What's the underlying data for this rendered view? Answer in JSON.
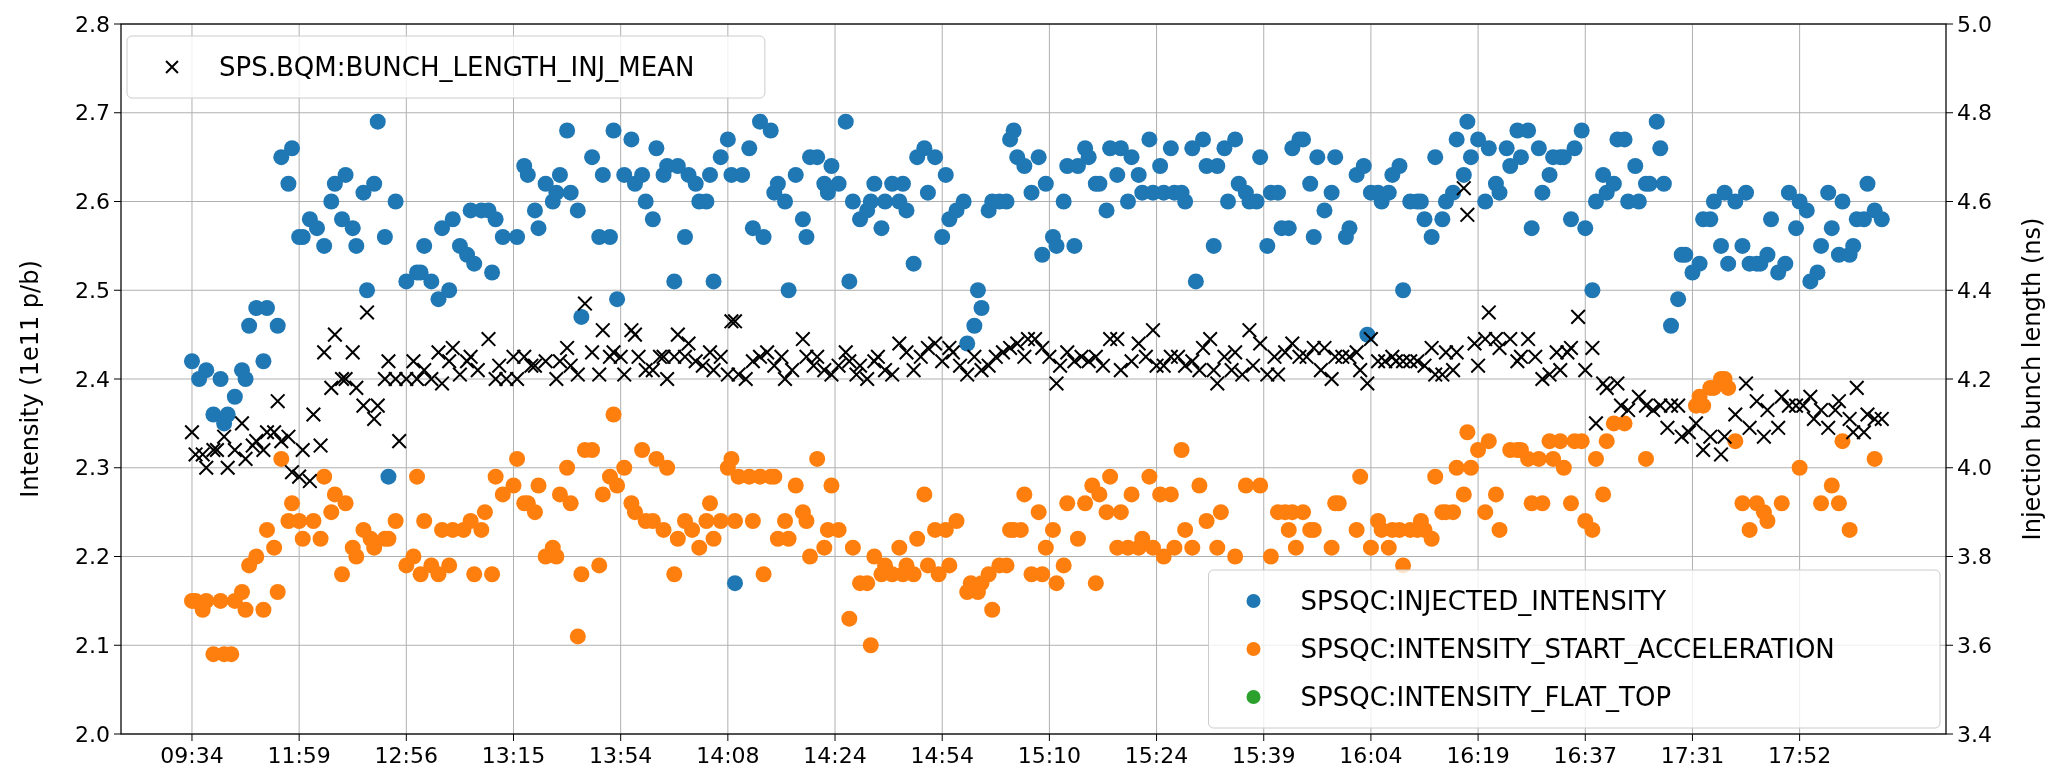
{
  "chart_data": {
    "type": "scatter",
    "ylabel": "Intensity (1e11 p/b)",
    "y2label": "Injection bunch length (ns)",
    "categories": [
      "09:34",
      null,
      null,
      null,
      null,
      null,
      null,
      null,
      null,
      null,
      null,
      null,
      null,
      null,
      null,
      null,
      null,
      null,
      null,
      null,
      null,
      null,
      null,
      null,
      null,
      null,
      null,
      null,
      null,
      null,
      "11:59",
      null,
      null,
      null,
      null,
      null,
      null,
      null,
      null,
      null,
      null,
      null,
      null,
      null,
      null,
      null,
      null,
      null,
      null,
      null,
      null,
      null,
      null,
      null,
      null,
      null,
      null,
      null,
      null,
      null,
      "12:56",
      null,
      null,
      null,
      null,
      null,
      null,
      null,
      null,
      null,
      null,
      null,
      null,
      null,
      null,
      null,
      null,
      null,
      null,
      null,
      null,
      null,
      null,
      null,
      null,
      null,
      null,
      null,
      null,
      null,
      "13:15",
      null,
      null,
      null,
      null,
      null,
      null,
      null,
      null,
      null,
      null,
      null,
      null,
      null,
      null,
      null,
      null,
      null,
      null,
      null,
      null,
      null,
      null,
      null,
      null,
      null,
      null,
      null,
      null,
      null,
      "13:54",
      null,
      null,
      null,
      null,
      null,
      null,
      null,
      null,
      null,
      null,
      null,
      null,
      null,
      null,
      null,
      null,
      null,
      null,
      null,
      null,
      null,
      null,
      null,
      null,
      null,
      null,
      null,
      null,
      null,
      "14:08",
      null,
      null,
      null,
      null,
      null,
      null,
      null,
      null,
      null,
      null,
      null,
      null,
      null,
      null,
      null,
      null,
      null,
      null,
      null,
      null,
      null,
      null,
      null,
      null,
      null,
      null,
      null,
      null,
      null,
      "14:24",
      null,
      null,
      null,
      null,
      null,
      null,
      null,
      null,
      null,
      null,
      null,
      null,
      null,
      null,
      null,
      null,
      null,
      null,
      null,
      null,
      null,
      null,
      null,
      null,
      null,
      null,
      null,
      null,
      null,
      "14:54",
      null,
      null,
      null,
      null,
      null,
      null,
      null,
      null,
      null,
      null,
      null,
      null,
      null,
      null,
      null,
      null,
      null,
      null,
      null,
      null,
      null,
      null,
      null,
      null,
      null,
      null,
      null,
      null,
      null,
      "15:10",
      null,
      null,
      null,
      null,
      null,
      null,
      null,
      null,
      null,
      null,
      null,
      null,
      null,
      null,
      null,
      null,
      null,
      null,
      null,
      null,
      null,
      null,
      null,
      null,
      null,
      null,
      null,
      null,
      null,
      "15:24",
      null,
      null,
      null,
      null,
      null,
      null,
      null,
      null,
      null,
      null,
      null,
      null,
      null,
      null,
      null,
      null,
      null,
      null,
      null,
      null,
      null,
      null,
      null,
      null,
      null,
      null,
      null,
      null,
      null,
      "15:39",
      null,
      null,
      null,
      null,
      null,
      null,
      null,
      null,
      null,
      null,
      null,
      null,
      null,
      null,
      null,
      null,
      null,
      null,
      null,
      null,
      null,
      null,
      null,
      null,
      null,
      null,
      null,
      null,
      null,
      "16:04",
      null,
      null,
      null,
      null,
      null,
      null,
      null,
      null,
      null,
      null,
      null,
      null,
      null,
      null,
      null,
      null,
      null,
      null,
      null,
      null,
      null,
      null,
      null,
      null,
      null,
      null,
      null,
      null,
      null,
      "16:19",
      null,
      null,
      null,
      null,
      null,
      null,
      null,
      null,
      null,
      null,
      null,
      null,
      null,
      null,
      null,
      null,
      null,
      null,
      null,
      null,
      null,
      null,
      null,
      null,
      null,
      null,
      null,
      null,
      null,
      "16:37",
      null,
      null,
      null,
      null,
      null,
      null,
      null,
      null,
      null,
      null,
      null,
      null,
      null,
      null,
      null,
      null,
      null,
      null,
      null,
      null,
      null,
      null,
      null,
      null,
      null,
      null,
      null,
      null,
      null,
      "17:31",
      null,
      null,
      null,
      null,
      null,
      null,
      null,
      null,
      null,
      null,
      null,
      null,
      null,
      null,
      null,
      null,
      null,
      null,
      null,
      null,
      null,
      null,
      null,
      null,
      null,
      null,
      null,
      null,
      null,
      "17:52",
      null,
      null,
      null,
      null,
      null,
      null,
      null,
      null,
      null,
      null,
      null,
      null,
      null,
      null,
      null,
      null,
      null,
      null,
      null,
      null,
      null,
      null,
      null
    ],
    "ylim": [
      2.0,
      2.8
    ],
    "yticks": [
      {
        "value": 2.0,
        "label": "2.0"
      },
      2.1,
      2.2,
      2.3,
      2.4,
      2.5,
      2.6,
      2.7,
      2.8
    ],
    "y2lim": [
      3.4,
      5.0
    ],
    "y2ticks": [
      3.4,
      3.6,
      3.8,
      {
        "value": 4.0,
        "label": "4.0"
      },
      4.2,
      4.4,
      4.6,
      4.8,
      {
        "value": 5.0,
        "label": "5.0"
      }
    ],
    "grid": true,
    "legend": "bottom right",
    "series": [
      {
        "name": "SPSQC:INJECTED_INTENSITY",
        "color": "#1f77b4",
        "marker": "circle",
        "values": [
          2.42,
          null,
          2.4,
          null,
          2.41,
          null,
          2.36,
          null,
          2.4,
          2.35,
          2.36,
          null,
          2.38,
          null,
          2.41,
          2.4,
          2.46,
          null,
          2.48,
          null,
          2.42,
          2.48,
          null,
          null,
          2.46,
          2.65,
          null,
          2.62,
          2.66,
          null,
          2.56,
          2.56,
          null,
          2.58,
          null,
          2.57,
          null,
          2.55,
          null,
          2.6,
          2.62,
          null,
          2.58,
          2.63,
          null,
          2.57,
          2.55,
          null,
          2.61,
          2.5,
          null,
          2.62,
          2.69,
          null,
          2.56,
          2.29,
          null,
          2.6,
          null,
          null,
          2.51,
          null,
          null,
          2.52,
          2.52,
          2.55,
          null,
          2.51,
          null,
          2.49,
          2.57,
          null,
          2.5,
          2.58,
          null,
          2.55,
          null,
          2.54,
          2.59,
          2.53,
          null,
          2.59,
          null,
          2.59,
          2.52,
          2.58,
          null,
          2.56,
          null,
          null,
          null,
          2.56,
          null,
          2.64,
          2.63,
          null,
          2.59,
          2.57,
          null,
          2.62,
          null,
          2.6,
          2.61,
          2.63,
          null,
          2.68,
          2.61,
          null,
          2.59,
          2.47,
          null,
          null,
          2.65,
          null,
          2.56,
          2.63,
          null,
          2.56,
          2.68,
          2.49,
          null,
          2.63,
          null,
          2.67,
          2.62,
          null,
          2.63,
          2.6,
          null,
          2.58,
          2.66,
          null,
          2.63,
          2.64,
          null,
          2.51,
          2.64,
          null,
          2.56,
          2.63,
          null,
          2.62,
          2.6,
          null,
          2.6,
          2.63,
          2.51,
          null,
          2.65,
          null,
          2.67,
          2.63,
          2.17,
          null,
          2.63,
          null,
          2.66,
          2.57,
          null,
          2.69,
          2.56,
          null,
          2.68,
          2.61,
          2.62,
          null,
          2.6,
          2.5,
          null,
          2.63,
          null,
          2.58,
          2.56,
          2.65,
          null,
          2.65,
          null,
          2.62,
          2.61,
          2.64,
          null,
          2.62,
          null,
          2.69,
          2.51,
          2.6,
          null,
          2.58,
          null,
          2.59,
          2.6,
          2.62,
          null,
          2.57,
          2.6,
          null,
          2.62,
          null,
          2.6,
          2.62,
          2.59,
          null,
          2.53,
          2.65,
          null,
          2.66,
          2.61,
          null,
          2.65,
          null,
          2.56,
          2.63,
          2.58,
          null,
          2.59,
          null,
          2.6,
          2.44,
          null,
          2.46,
          2.5,
          2.48,
          null,
          2.59,
          2.6,
          null,
          2.6,
          null,
          2.6,
          2.67,
          2.68,
          2.65,
          null,
          2.64,
          null,
          2.61,
          null,
          2.65,
          2.54,
          2.62,
          null,
          2.56,
          2.55,
          null,
          2.6,
          2.64,
          null,
          2.55,
          2.64,
          null,
          2.66,
          2.65,
          null,
          2.62,
          2.62,
          null,
          2.59,
          2.66,
          null,
          2.63,
          2.66,
          null,
          2.6,
          2.65,
          null,
          2.63,
          2.61,
          null,
          2.67,
          2.61,
          null,
          2.64,
          2.61,
          null,
          2.66,
          2.61,
          null,
          2.61,
          2.6,
          null,
          2.66,
          2.51,
          null,
          2.67,
          2.64,
          null,
          2.55,
          2.64,
          null,
          2.66,
          2.6,
          null,
          2.67,
          2.62,
          null,
          2.61,
          2.6,
          null,
          2.6,
          2.65,
          null,
          2.55,
          2.61,
          null,
          2.61,
          2.57,
          null,
          2.57,
          2.66,
          null,
          2.67,
          2.67,
          null,
          2.62,
          2.56,
          2.65,
          null,
          2.59,
          null,
          2.61,
          2.65,
          null,
          null,
          2.56,
          2.57,
          null,
          2.63,
          null,
          2.64,
          2.45,
          2.61,
          null,
          2.61,
          2.6,
          null,
          2.61,
          2.63,
          null,
          2.64,
          2.5,
          null,
          2.6,
          null,
          2.6,
          2.6,
          2.58,
          null,
          2.56,
          2.65,
          null,
          2.58,
          2.6,
          null,
          2.61,
          2.67,
          null,
          2.63,
          2.69,
          2.65,
          null,
          2.67,
          null,
          2.6,
          2.66,
          null,
          2.62,
          2.61,
          null,
          2.66,
          2.64,
          null,
          2.68,
          2.65,
          null,
          2.68,
          2.57,
          null,
          2.66,
          2.61,
          null,
          2.63,
          2.65,
          null,
          2.65,
          2.65,
          null,
          2.58,
          2.66,
          null,
          2.68,
          2.57,
          null,
          2.5,
          2.6,
          null,
          2.63,
          2.61,
          null,
          2.62,
          2.67,
          null,
          2.67,
          2.6,
          null,
          2.64,
          2.6,
          null,
          2.62,
          2.62,
          null,
          2.69,
          2.66,
          2.62,
          null,
          2.46,
          null,
          2.49,
          2.54,
          2.54,
          null,
          2.52,
          null,
          2.53,
          2.58,
          null,
          2.58,
          2.6,
          null,
          2.55,
          2.61,
          2.53,
          null,
          2.6,
          null,
          2.55,
          2.61,
          2.53,
          null,
          2.53,
          2.53,
          null,
          2.54,
          2.58,
          null,
          2.52,
          null,
          2.53,
          2.61,
          null,
          2.57,
          2.6,
          null,
          2.59,
          2.51,
          null,
          2.52,
          2.55,
          null,
          2.61,
          2.57,
          null,
          2.54,
          2.6,
          null,
          2.54,
          2.55,
          2.58,
          null,
          2.58,
          2.62,
          null,
          2.59,
          null,
          2.58
        ]
      },
      {
        "name": "SPSQC:INTENSITY_START_ACCELERATION",
        "color": "#ff7f0e",
        "marker": "circle",
        "values": [
          2.15,
          2.15,
          null,
          2.14,
          2.15,
          null,
          2.09,
          null,
          2.15,
          2.09,
          null,
          2.09,
          2.15,
          null,
          2.16,
          2.14,
          2.19,
          null,
          2.2,
          null,
          2.14,
          2.23,
          null,
          2.21,
          2.16,
          2.31,
          null,
          2.24,
          2.26,
          null,
          2.24,
          2.22,
          null,
          null,
          2.24,
          null,
          2.22,
          2.29,
          null,
          2.25,
          2.27,
          null,
          2.18,
          2.26,
          null,
          2.21,
          2.2,
          null,
          2.23,
          null,
          2.22,
          2.21,
          null,
          null,
          2.22,
          2.22,
          null,
          2.24,
          null,
          null,
          2.19,
          null,
          2.2,
          2.29,
          2.18,
          2.24,
          null,
          2.19,
          null,
          2.18,
          2.23,
          null,
          2.19,
          2.23,
          null,
          null,
          2.23,
          null,
          2.24,
          2.18,
          null,
          2.23,
          2.25,
          null,
          2.18,
          2.29,
          null,
          2.27,
          null,
          null,
          2.28,
          2.31,
          null,
          2.26,
          2.26,
          null,
          2.25,
          2.28,
          null,
          2.2,
          null,
          2.21,
          2.2,
          2.27,
          null,
          2.3,
          2.26,
          null,
          2.11,
          2.18,
          2.32,
          null,
          2.32,
          null,
          2.19,
          2.27,
          null,
          2.29,
          2.36,
          2.28,
          null,
          2.3,
          null,
          2.26,
          2.25,
          null,
          2.32,
          2.24,
          null,
          2.24,
          2.31,
          null,
          2.23,
          2.3,
          null,
          2.18,
          2.22,
          null,
          2.24,
          null,
          2.23,
          null,
          2.21,
          null,
          2.24,
          2.26,
          2.22,
          null,
          2.24,
          null,
          2.3,
          2.31,
          2.24,
          2.29,
          null,
          null,
          2.29,
          2.24,
          null,
          2.29,
          2.18,
          null,
          2.29,
          2.29,
          2.22,
          null,
          2.24,
          2.22,
          null,
          2.28,
          null,
          2.25,
          2.24,
          2.2,
          null,
          2.31,
          null,
          2.21,
          2.23,
          2.28,
          null,
          2.23,
          null,
          null,
          2.13,
          2.21,
          null,
          2.17,
          null,
          2.17,
          2.1,
          2.2,
          null,
          2.18,
          2.19,
          null,
          2.18,
          null,
          2.21,
          2.18,
          2.19,
          null,
          2.18,
          2.22,
          null,
          2.27,
          2.19,
          null,
          2.23,
          2.18,
          null,
          2.23,
          2.19,
          null,
          2.24,
          null,
          null,
          2.16,
          2.17,
          null,
          2.16,
          2.17,
          null,
          2.18,
          2.14,
          null,
          2.19,
          null,
          2.19,
          2.23,
          2.23,
          null,
          2.23,
          2.27,
          null,
          2.18,
          null,
          2.25,
          2.18,
          2.21,
          null,
          2.23,
          2.17,
          null,
          2.19,
          2.26,
          null,
          null,
          2.22,
          null,
          2.26,
          null,
          2.28,
          2.17,
          2.27,
          null,
          2.25,
          2.29,
          null,
          2.21,
          2.25,
          null,
          2.21,
          2.27,
          null,
          2.21,
          2.22,
          null,
          2.29,
          2.21,
          null,
          2.27,
          2.2,
          null,
          2.27,
          2.21,
          null,
          2.32,
          2.23,
          null,
          2.21,
          null,
          2.28,
          null,
          2.24,
          null,
          null,
          2.21,
          2.25,
          null,
          null,
          null,
          2.2,
          null,
          null,
          2.28,
          null,
          null,
          null,
          2.28,
          null,
          null,
          2.2,
          null,
          2.25,
          null,
          2.25,
          2.23,
          2.25,
          2.21,
          null,
          2.25,
          null,
          2.23,
          2.23,
          null,
          null,
          null,
          null,
          2.21,
          2.26,
          2.26,
          null,
          null,
          null,
          null,
          2.23,
          2.29,
          null,
          null,
          2.21,
          null,
          2.24,
          2.23,
          null,
          2.21,
          2.23,
          null,
          2.23,
          2.19,
          null,
          2.23,
          null,
          2.23,
          2.24,
          2.23,
          null,
          2.22,
          2.29,
          null,
          2.25,
          2.25,
          null,
          2.25,
          2.3,
          null,
          2.27,
          2.34,
          2.3,
          null,
          2.32,
          null,
          2.25,
          2.33,
          null,
          2.27,
          2.23,
          null,
          null,
          2.32,
          null,
          2.32,
          2.32,
          null,
          2.31,
          2.26,
          null,
          2.31,
          2.26,
          null,
          2.33,
          2.31,
          null,
          2.33,
          2.3,
          null,
          2.26,
          2.33,
          null,
          2.33,
          2.24,
          null,
          2.23,
          2.31,
          null,
          2.27,
          2.33,
          null,
          2.35,
          null,
          null,
          2.35,
          null,
          null,
          null,
          null,
          null,
          2.31,
          null,
          null,
          null,
          null,
          null,
          null,
          null,
          null,
          null,
          null,
          null,
          null,
          null,
          2.37,
          2.38,
          2.37,
          null,
          2.39,
          2.39,
          null,
          2.4,
          2.4,
          2.39,
          null,
          2.33,
          null,
          2.26,
          null,
          2.23,
          null,
          2.26,
          null,
          2.25,
          2.24,
          null,
          null,
          null,
          2.26,
          null,
          null,
          null,
          null,
          2.3,
          null,
          null,
          null,
          null,
          null,
          2.26,
          null,
          null,
          2.28,
          null,
          2.26,
          2.33,
          null,
          2.23,
          null,
          null,
          null,
          null,
          null,
          null,
          2.31,
          null,
          null
        ]
      },
      {
        "name": "SPSQC:INTENSITY_FLAT_TOP",
        "color": "#2ca02c",
        "marker": "circle",
        "values": [
          null,
          null,
          null,
          null,
          null,
          null,
          null,
          null,
          null,
          null,
          null,
          null,
          null,
          null,
          null,
          null,
          null,
          null,
          null,
          null,
          null,
          null,
          null,
          null,
          null,
          null,
          null,
          null,
          null,
          null,
          null,
          null,
          null,
          null,
          null,
          null,
          null,
          null,
          null,
          null,
          null,
          null,
          null,
          null,
          null,
          null,
          null,
          null,
          null,
          null,
          null,
          null,
          null,
          null,
          null,
          null,
          null,
          null,
          null,
          null,
          null,
          null,
          null,
          null,
          null,
          null,
          null,
          null,
          null,
          null,
          null,
          null,
          null,
          null,
          null,
          null,
          null,
          null,
          null,
          null,
          null,
          null,
          null,
          null,
          null,
          null,
          null,
          null,
          null,
          null,
          null,
          null,
          null,
          null,
          null,
          null,
          null,
          null,
          null,
          null,
          null,
          null,
          null,
          null,
          null,
          null,
          null,
          null,
          null,
          null,
          null,
          null,
          null,
          null,
          null,
          null,
          null,
          null,
          null,
          null,
          null,
          null,
          null,
          null,
          null,
          null,
          null,
          null,
          null,
          null,
          null,
          null,
          null,
          null,
          null,
          null,
          null,
          null,
          null,
          null,
          null,
          null,
          null,
          null,
          null,
          null,
          null,
          null,
          null,
          null,
          null,
          null,
          null,
          null,
          null,
          null,
          null,
          null,
          null,
          null,
          null,
          null,
          null,
          null,
          null,
          null,
          null,
          null,
          null,
          null,
          null,
          null,
          null,
          null,
          null,
          null,
          null,
          null,
          null,
          null,
          null,
          null,
          null,
          null,
          null,
          null,
          null,
          null,
          null,
          null,
          null,
          null,
          null,
          null,
          null,
          null,
          null,
          null,
          null,
          null,
          null,
          null,
          null,
          null,
          null,
          null,
          null,
          null,
          null,
          null,
          null,
          null,
          null,
          null,
          null,
          null,
          null,
          null,
          null,
          null,
          null,
          null,
          null,
          null,
          null,
          null,
          null,
          null,
          null,
          null,
          null,
          null,
          null,
          null,
          null,
          null,
          null,
          null,
          null,
          null,
          null,
          null,
          null,
          null,
          null,
          null,
          null,
          null,
          null,
          null,
          null,
          null,
          null,
          null,
          null,
          null,
          null,
          null,
          null,
          null,
          null,
          null,
          null,
          null,
          null,
          null,
          null,
          null,
          null,
          null,
          null,
          null,
          null,
          null,
          null,
          null,
          null,
          null,
          null,
          null,
          null,
          null,
          null,
          null,
          null,
          null,
          null,
          null,
          null,
          null,
          null,
          null,
          null,
          null,
          null,
          null,
          null,
          null,
          null,
          null,
          null,
          null,
          null,
          null,
          null,
          null,
          null,
          null,
          null,
          null,
          null,
          null,
          null,
          null,
          null,
          null,
          null,
          null,
          null,
          null,
          null,
          null,
          null,
          null,
          null,
          null,
          null,
          null,
          null,
          null,
          null,
          null,
          null,
          null,
          null,
          null,
          null,
          null,
          null,
          null,
          null,
          null,
          null,
          null,
          null,
          null,
          null,
          null,
          null,
          null,
          null,
          null,
          null,
          null,
          null,
          null,
          null,
          null,
          null,
          null,
          null,
          null,
          null,
          null,
          null,
          null,
          null,
          null,
          null,
          null,
          null,
          null,
          null,
          null,
          null,
          null,
          null,
          null,
          null,
          null,
          null,
          null,
          null,
          null,
          null,
          null,
          null,
          null,
          null,
          null,
          null,
          null,
          null,
          null,
          null,
          null,
          null,
          null,
          null,
          null,
          null,
          null,
          null,
          null,
          null,
          null,
          null,
          null,
          null,
          null,
          null,
          null,
          null,
          null,
          null,
          null,
          null,
          null,
          null,
          null,
          null,
          null,
          null,
          null,
          null,
          null,
          null,
          null,
          null,
          null,
          null,
          null,
          null,
          null,
          null,
          null,
          null,
          null,
          null,
          null,
          null,
          null,
          null,
          null,
          null,
          null,
          null,
          null,
          null,
          null,
          null,
          null,
          null,
          null,
          null,
          null,
          null,
          null,
          null,
          null,
          null,
          null,
          null,
          null,
          null,
          null,
          null,
          null,
          null,
          null,
          null,
          null,
          null,
          null
        ]
      },
      {
        "name": "SPS.BQM:BUNCH_LENGTH_INJ_MEAN",
        "color": "#000000",
        "marker": "cross",
        "axis": "y2",
        "values": [
          4.08,
          4.03,
          null,
          4.03,
          4.0,
          null,
          4.04,
          4.04,
          null,
          4.07,
          4.0,
          null,
          4.04,
          null,
          4.1,
          4.02,
          null,
          4.05,
          4.06,
          null,
          4.04,
          4.08,
          null,
          4.08,
          4.15,
          4.06,
          null,
          4.07,
          3.99,
          null,
          3.98,
          4.04,
          null,
          3.97,
          4.12,
          null,
          4.05,
          4.26,
          null,
          4.18,
          4.3,
          null,
          4.2,
          4.2,
          null,
          4.26,
          4.18,
          null,
          4.14,
          4.35,
          null,
          4.11,
          4.14,
          null,
          4.2,
          4.24,
          null,
          4.2,
          4.06,
          null,
          4.2,
          null,
          4.24,
          4.2,
          null,
          4.22,
          null,
          4.2,
          null,
          4.26,
          4.19,
          null,
          4.24,
          4.27,
          null,
          4.21,
          null,
          4.24,
          4.25,
          null,
          4.22,
          null,
          null,
          4.29,
          null,
          4.2,
          4.23,
          null,
          4.2,
          null,
          4.25,
          4.2,
          null,
          4.25,
          null,
          4.23,
          4.23,
          null,
          null,
          4.24,
          null,
          null,
          4.2,
          4.24,
          null,
          4.27,
          4.23,
          null,
          4.21,
          null,
          4.37,
          null,
          4.26,
          null,
          4.21,
          4.31,
          null,
          4.25,
          4.26,
          null,
          4.25,
          4.21,
          null,
          4.31,
          4.3,
          4.25,
          null,
          4.22,
          null,
          4.22,
          null,
          4.25,
          4.25,
          4.2,
          null,
          4.25,
          4.3,
          null,
          4.25,
          4.28,
          null,
          4.24,
          null,
          4.23,
          null,
          4.26,
          4.22,
          null,
          4.25,
          null,
          4.21,
          4.33,
          4.33,
          4.21,
          null,
          4.2,
          null,
          4.24,
          null,
          4.25,
          null,
          4.26,
          null,
          4.23,
          null,
          4.25,
          4.2,
          null,
          4.22,
          null,
          null,
          4.29,
          4.25,
          null,
          4.23,
          4.25,
          null,
          4.22,
          null,
          4.21,
          null,
          4.23,
          null,
          4.26,
          4.24,
          null,
          4.21,
          4.23,
          null,
          4.2,
          null,
          4.24,
          4.25,
          null,
          4.22,
          null,
          4.21,
          null,
          4.28,
          null,
          4.26,
          null,
          4.22,
          null,
          4.25,
          null,
          4.27,
          null,
          4.28,
          null,
          4.24,
          null,
          4.27,
          4.26,
          null,
          4.23,
          null,
          4.21,
          null,
          4.25,
          null,
          4.22,
          null,
          4.23,
          null,
          4.25,
          null,
          4.26,
          null,
          4.27,
          null,
          4.28,
          null,
          4.25,
          4.29,
          null,
          4.29,
          null,
          4.27,
          null,
          4.25,
          null,
          4.19,
          4.23,
          null,
          4.26,
          null,
          4.24,
          null,
          4.25,
          null,
          4.24,
          null,
          4.25,
          null,
          4.23,
          null,
          4.29,
          null,
          4.29,
          4.22,
          null,
          null,
          4.24,
          null,
          4.28,
          null,
          4.25,
          null,
          4.31,
          4.23,
          null,
          4.23,
          null,
          4.25,
          null,
          4.25,
          null,
          4.23,
          null,
          4.24,
          null,
          4.22,
          4.27,
          null,
          4.29,
          4.22,
          4.19,
          null,
          4.25,
          null,
          4.22,
          4.26,
          null,
          4.21,
          null,
          4.31,
          4.23,
          null,
          4.28,
          null,
          4.21,
          null,
          4.25,
          4.21,
          null,
          4.26,
          null,
          4.28,
          null,
          4.25,
          null,
          4.25,
          null,
          4.27,
          null,
          4.22,
          4.27,
          null,
          4.2,
          4.25,
          null,
          4.25,
          null,
          4.25,
          null,
          4.26,
          4.22,
          null,
          4.19,
          4.29,
          null,
          4.24,
          null,
          4.24,
          null,
          4.25,
          4.24,
          null,
          4.24,
          null,
          4.24,
          null,
          4.24,
          null,
          4.23,
          null,
          4.27,
          4.21,
          null,
          4.21,
          4.26,
          null,
          4.22,
          4.26,
          null,
          4.63,
          4.57,
          null,
          4.28,
          4.23,
          null,
          4.29,
          4.35,
          null,
          4.29,
          4.27,
          null,
          null,
          4.29,
          null,
          4.24,
          4.25,
          null,
          4.29,
          null,
          4.25,
          null,
          4.2,
          null,
          4.21,
          null,
          4.26,
          4.22,
          null,
          4.26,
          4.27,
          null,
          4.34,
          null,
          4.22,
          null,
          4.27,
          4.1,
          null,
          4.19,
          4.18,
          null,
          null,
          4.19,
          4.14,
          null,
          4.13,
          null,
          null,
          4.16,
          null,
          4.14,
          null,
          4.13,
          null,
          4.14,
          null,
          4.09,
          4.14,
          null,
          4.14,
          4.07,
          null,
          4.08,
          null,
          4.1,
          null,
          4.04,
          null,
          4.07,
          null,
          null,
          4.03,
          4.07,
          null,
          null,
          4.12,
          null,
          null,
          4.19,
          4.09,
          null,
          4.15,
          null,
          4.07,
          4.13,
          null,
          null,
          4.09,
          4.16,
          null,
          4.14,
          null,
          4.14,
          null,
          4.14,
          null,
          4.16,
          4.11,
          null,
          4.13,
          null,
          4.09,
          null,
          4.13,
          4.15,
          null,
          null,
          4.11,
          4.08,
          4.18,
          null,
          4.08,
          4.12,
          null,
          4.11,
          null,
          4.11
        ]
      }
    ]
  }
}
